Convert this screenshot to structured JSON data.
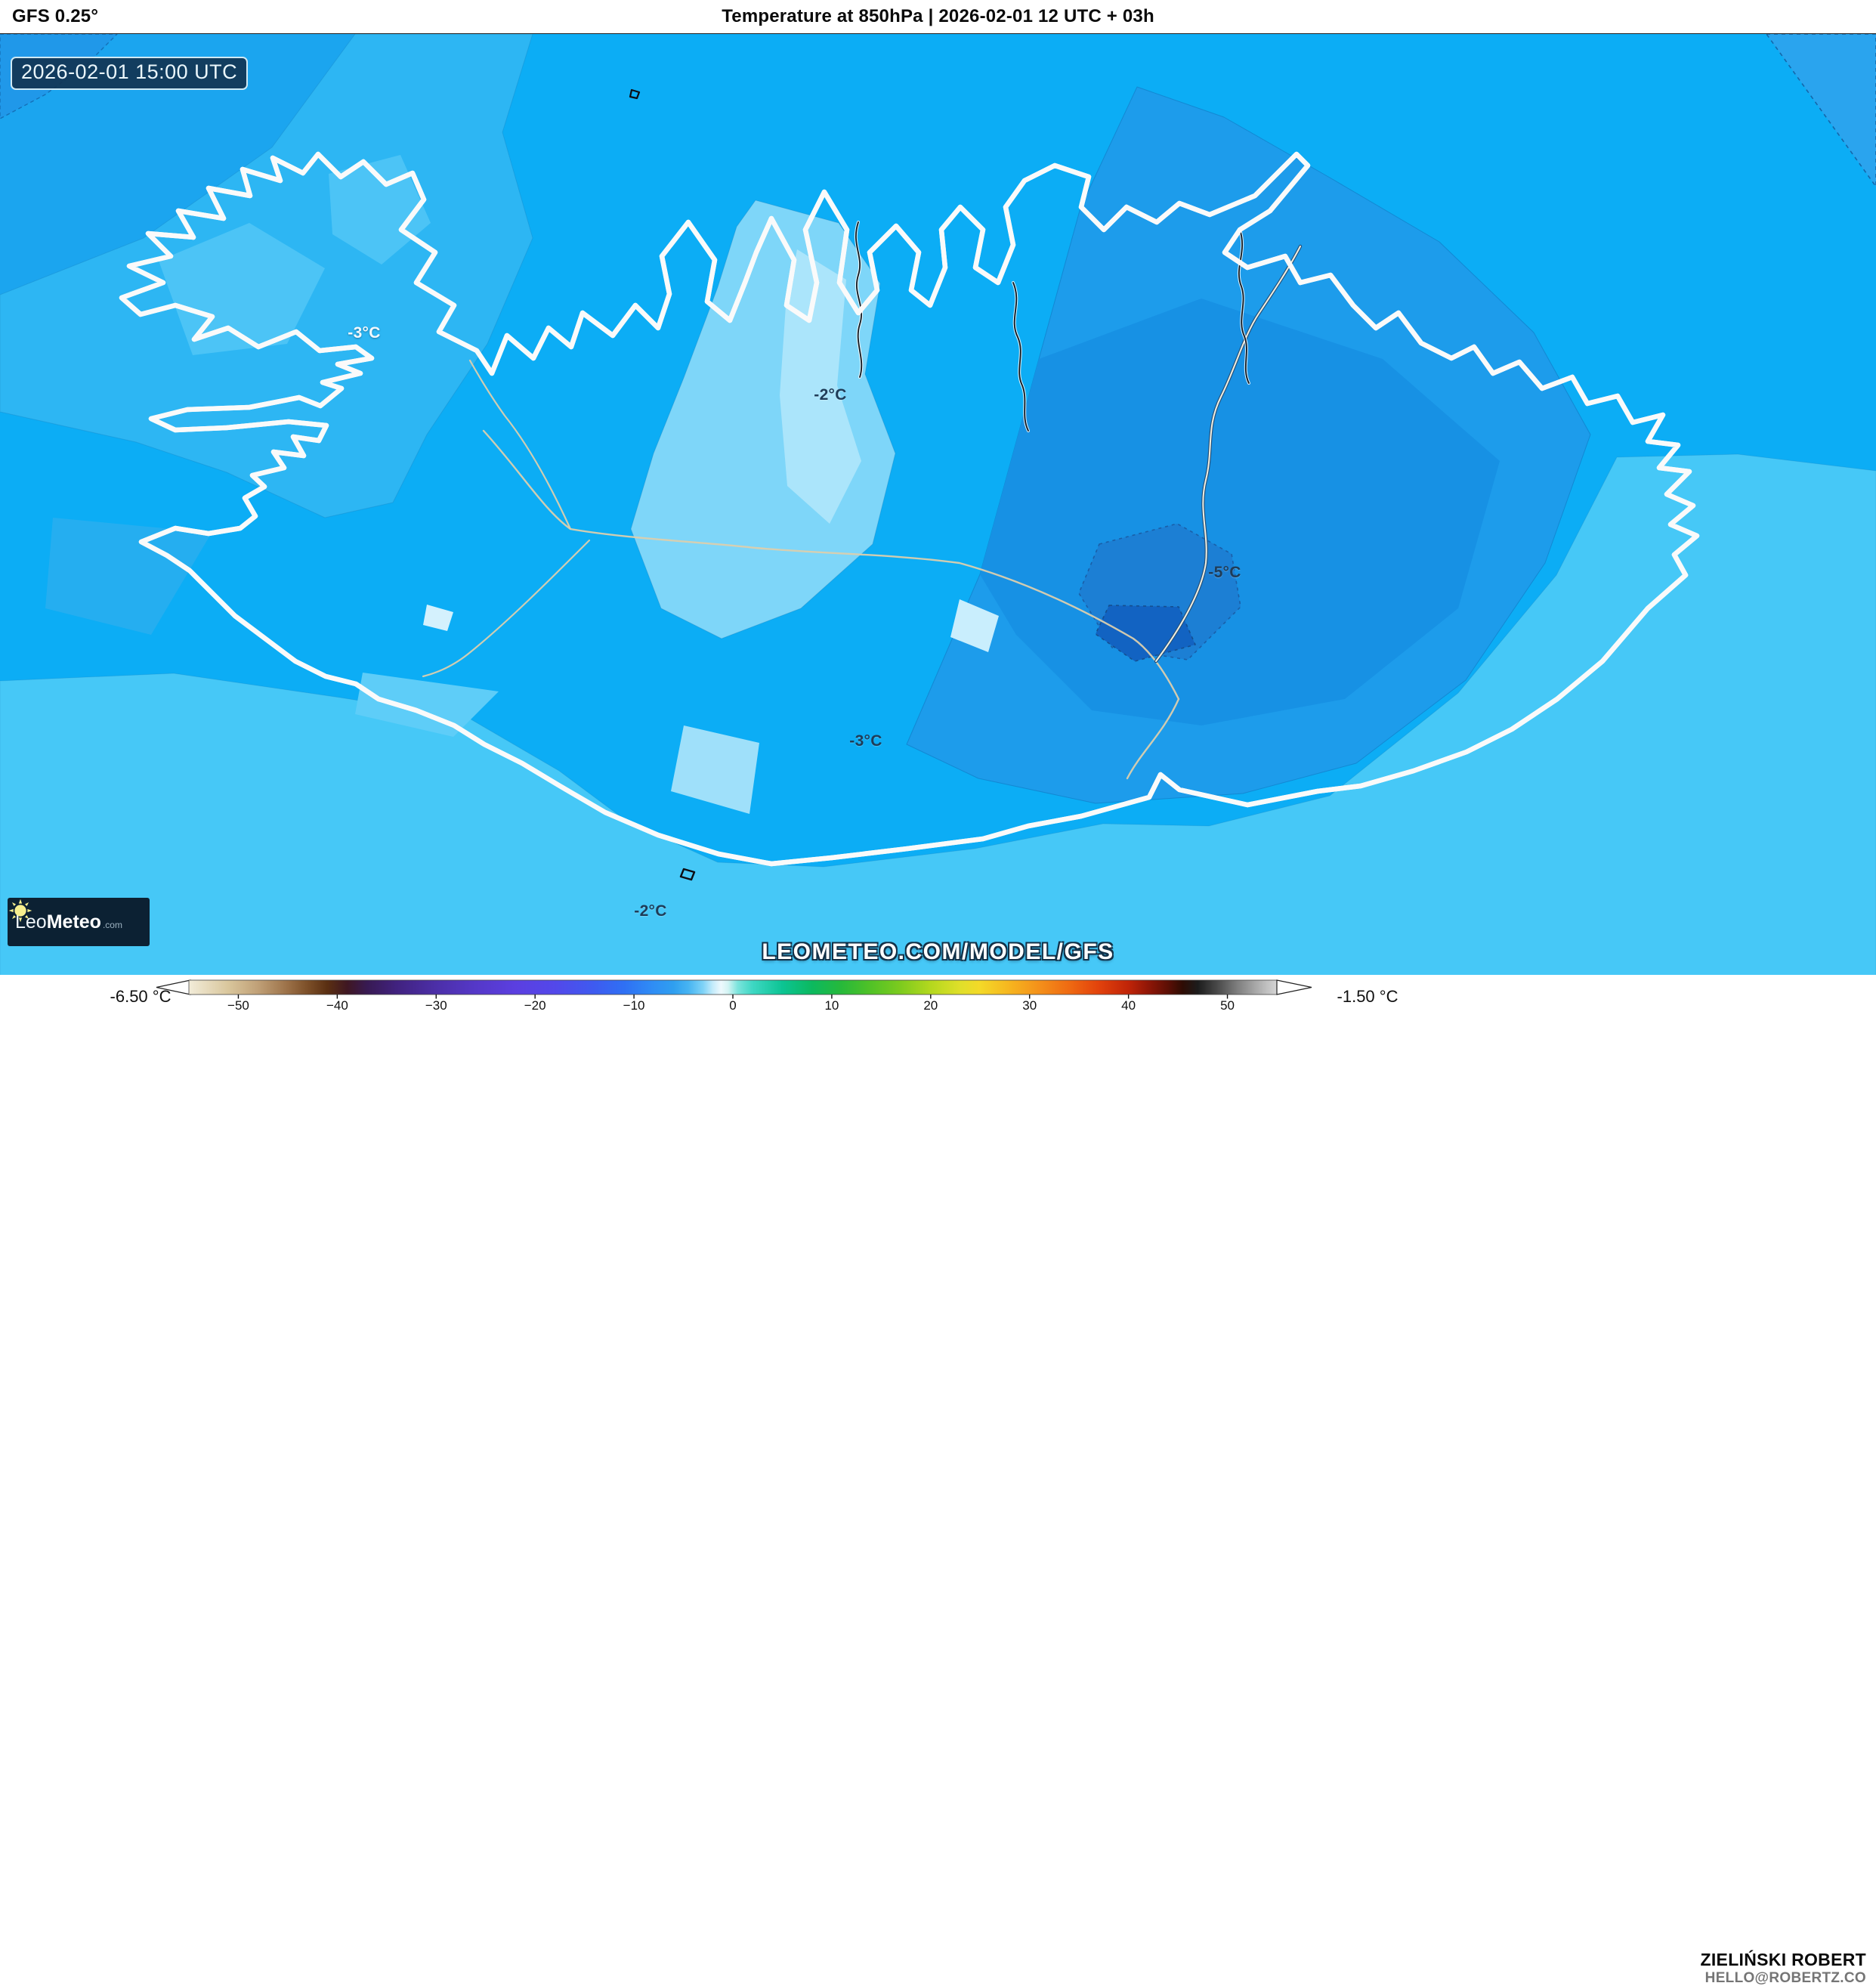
{
  "header": {
    "model": "GFS 0.25°",
    "title": "Temperature at 850hPa | 2026-02-01 12 UTC + 03h"
  },
  "map": {
    "timestamp_badge": "2026-02-01 15:00 UTC",
    "watermark": "LEOMETEO.COM/MODEL/GFS",
    "labels": [
      {
        "text": "-3°C",
        "tone": "light"
      },
      {
        "text": "-2°C",
        "tone": "dark"
      },
      {
        "text": "-5°C",
        "tone": "dark"
      },
      {
        "text": "-3°C",
        "tone": "dark"
      },
      {
        "text": "-2°C",
        "tone": "dark"
      }
    ],
    "colors": {
      "ocean_base": "#0cadf5",
      "region_medium": "#2db6f3",
      "region_light": "#7ed6f9",
      "region_pale": "#abe5fb",
      "region_east_dark": "#1d9ceb",
      "cold_pocket": "#1c7fd4",
      "cold_pocket_core": "#1263c2",
      "south_ocean": "#46c8f7",
      "coastline": "#0c0d14",
      "road": "#dbcfae"
    }
  },
  "logo": {
    "name_light": "Leo",
    "name_bold": "Meteo",
    "suffix": ".com",
    "sun_color": "#f7ef8e",
    "box_color": "#0c2133"
  },
  "colorbar": {
    "min_label": "-6.50 °C",
    "max_label": "-1.50 °C",
    "ticks": [
      "−50",
      "−40",
      "−30",
      "−20",
      "−10",
      "0",
      "10",
      "20",
      "30",
      "40",
      "50"
    ],
    "tick_values": [
      -50,
      -40,
      -30,
      -20,
      -10,
      0,
      10,
      20,
      30,
      40,
      50
    ],
    "range": [
      -55,
      55
    ],
    "stops": [
      [
        "#f2ecd9",
        -55
      ],
      [
        "#d9c69c",
        -51
      ],
      [
        "#c0a077",
        -48
      ],
      [
        "#9b7047",
        -45
      ],
      [
        "#7c4f28",
        -43
      ],
      [
        "#5a2f12",
        -41
      ],
      [
        "#3f1722",
        -39
      ],
      [
        "#381a52",
        -37
      ],
      [
        "#41227f",
        -34
      ],
      [
        "#4c2fa8",
        -30
      ],
      [
        "#5538c8",
        -26
      ],
      [
        "#5b3fe0",
        -22
      ],
      [
        "#5348ea",
        -18
      ],
      [
        "#3e5bf0",
        -14
      ],
      [
        "#2f70f4",
        -11
      ],
      [
        "#2f8ef5",
        -8
      ],
      [
        "#2f9ff0",
        -6
      ],
      [
        "#47b4f2",
        -4.5
      ],
      [
        "#7fd3f7",
        -3
      ],
      [
        "#c6ecfb",
        -2
      ],
      [
        "#eef9fd",
        -1.2
      ],
      [
        "#d4f4f4",
        -0.5
      ],
      [
        "#7be4dc",
        0.5
      ],
      [
        "#3ed7c3",
        2
      ],
      [
        "#0cc493",
        5
      ],
      [
        "#0cb95f",
        8
      ],
      [
        "#27b93a",
        11
      ],
      [
        "#52c226",
        14
      ],
      [
        "#7ecb1e",
        17
      ],
      [
        "#b4d81e",
        20
      ],
      [
        "#e0df2a",
        23
      ],
      [
        "#f4d928",
        25
      ],
      [
        "#f6b51f",
        28
      ],
      [
        "#f4901a",
        31
      ],
      [
        "#ef6a12",
        34
      ],
      [
        "#e2420c",
        37
      ],
      [
        "#c02408",
        40
      ],
      [
        "#901607",
        42
      ],
      [
        "#5c0f05",
        44
      ],
      [
        "#2e0c04",
        45.5
      ],
      [
        "#1c1c1c",
        47
      ],
      [
        "#4a4a4a",
        49
      ],
      [
        "#7e7e7e",
        51
      ],
      [
        "#ababab",
        53
      ],
      [
        "#d6d6d6",
        55
      ]
    ]
  },
  "credit": {
    "name": "ZIELIŃSKI ROBERT",
    "email": "HELLO@ROBERTZ.CO"
  }
}
